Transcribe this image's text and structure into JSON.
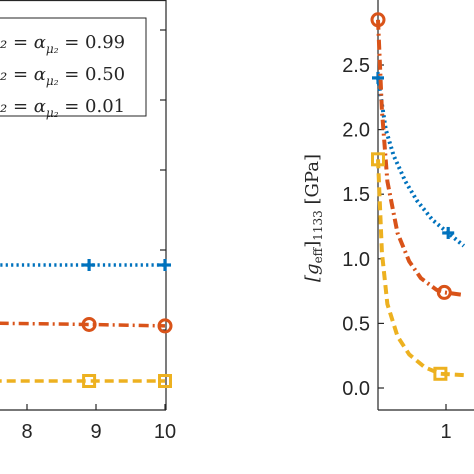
{
  "colors": {
    "blue": "#0072BD",
    "orange": "#D95319",
    "yellow": "#EDB120",
    "axis": "#262626"
  },
  "legend": {
    "entries": [
      {
        "prefix": "₂ = α",
        "sub": "μ₂",
        "value": "= 0.99",
        "marker": "plus",
        "color": "#0072BD"
      },
      {
        "prefix": "₂ = α",
        "sub": "μ₂",
        "value": "= 0.50",
        "marker": "circle",
        "color": "#D95319"
      },
      {
        "prefix": "₂ = α",
        "sub": "μ₂",
        "value": "= 0.01",
        "marker": "square",
        "color": "#EDB120"
      }
    ]
  },
  "chart_data": [
    {
      "type": "line",
      "position": "left-panel (cropped)",
      "xlabel": "",
      "ylabel": "",
      "xlim": [
        7.3,
        10
      ],
      "x_ticks": [
        8,
        9,
        10
      ],
      "x_tick_labels": [
        "8",
        "9",
        "10"
      ],
      "grid": false,
      "legend_placement": "top-right",
      "series": [
        {
          "name": "α = 0.99",
          "style": "dotted",
          "marker": "plus",
          "color": "#0072BD",
          "x": [
            7.3,
            8.9,
            10
          ],
          "y": [
            0.5,
            0.5,
            0.5
          ]
        },
        {
          "name": "α = 0.50",
          "style": "dash-dot",
          "marker": "circle",
          "color": "#D95319",
          "x": [
            7.3,
            8.9,
            10
          ],
          "y": [
            0.3,
            0.295,
            0.29
          ]
        },
        {
          "name": "α = 0.01",
          "style": "dashed",
          "marker": "square",
          "color": "#EDB120",
          "x": [
            7.3,
            8.9,
            10
          ],
          "y": [
            0.1,
            0.1,
            0.1
          ]
        }
      ]
    },
    {
      "type": "line",
      "position": "right-panel (cropped)",
      "xlabel": "",
      "ylabel_prefix": "[g",
      "ylabel_sub": "eff",
      "ylabel_suffix": "]",
      "ylabel_sub2": "1133",
      "ylabel_unit": " [GPa]",
      "ylim": [
        -0.1,
        2.85
      ],
      "y_ticks": [
        0.0,
        0.5,
        1.0,
        1.5,
        2.0,
        2.5
      ],
      "y_tick_labels": [
        "0.0",
        "0.5",
        "1.0",
        "1.5",
        "2.0",
        "2.5"
      ],
      "x_ticks": [
        1
      ],
      "x_tick_labels": [
        "1"
      ],
      "grid": false,
      "series": [
        {
          "name": "α = 0.99",
          "style": "dotted",
          "marker": "plus",
          "color": "#0072BD",
          "x": [
            0,
            0.1,
            0.2,
            0.35,
            0.5,
            0.7,
            0.9,
            1.1
          ],
          "y": [
            2.4,
            2.0,
            1.8,
            1.6,
            1.45,
            1.3,
            1.2,
            1.1
          ],
          "marker_x": [
            0,
            0.9
          ],
          "marker_y": [
            2.4,
            1.2
          ]
        },
        {
          "name": "α = 0.50",
          "style": "dash-dot",
          "marker": "circle",
          "color": "#D95319",
          "x": [
            0,
            0.05,
            0.12,
            0.25,
            0.4,
            0.55,
            0.75,
            0.85,
            1.1
          ],
          "y": [
            2.85,
            2.15,
            1.6,
            1.2,
            0.98,
            0.85,
            0.76,
            0.74,
            0.72
          ],
          "marker_x": [
            0,
            0.85
          ],
          "marker_y": [
            2.85,
            0.74
          ]
        },
        {
          "name": "α = 0.01",
          "style": "dashed",
          "marker": "square",
          "color": "#EDB120",
          "x": [
            0,
            0.05,
            0.12,
            0.25,
            0.4,
            0.6,
            0.8,
            1.1
          ],
          "y": [
            1.77,
            1.05,
            0.65,
            0.4,
            0.26,
            0.16,
            0.11,
            0.1
          ],
          "marker_x": [
            0,
            0.8
          ],
          "marker_y": [
            1.77,
            0.11
          ]
        }
      ]
    }
  ]
}
